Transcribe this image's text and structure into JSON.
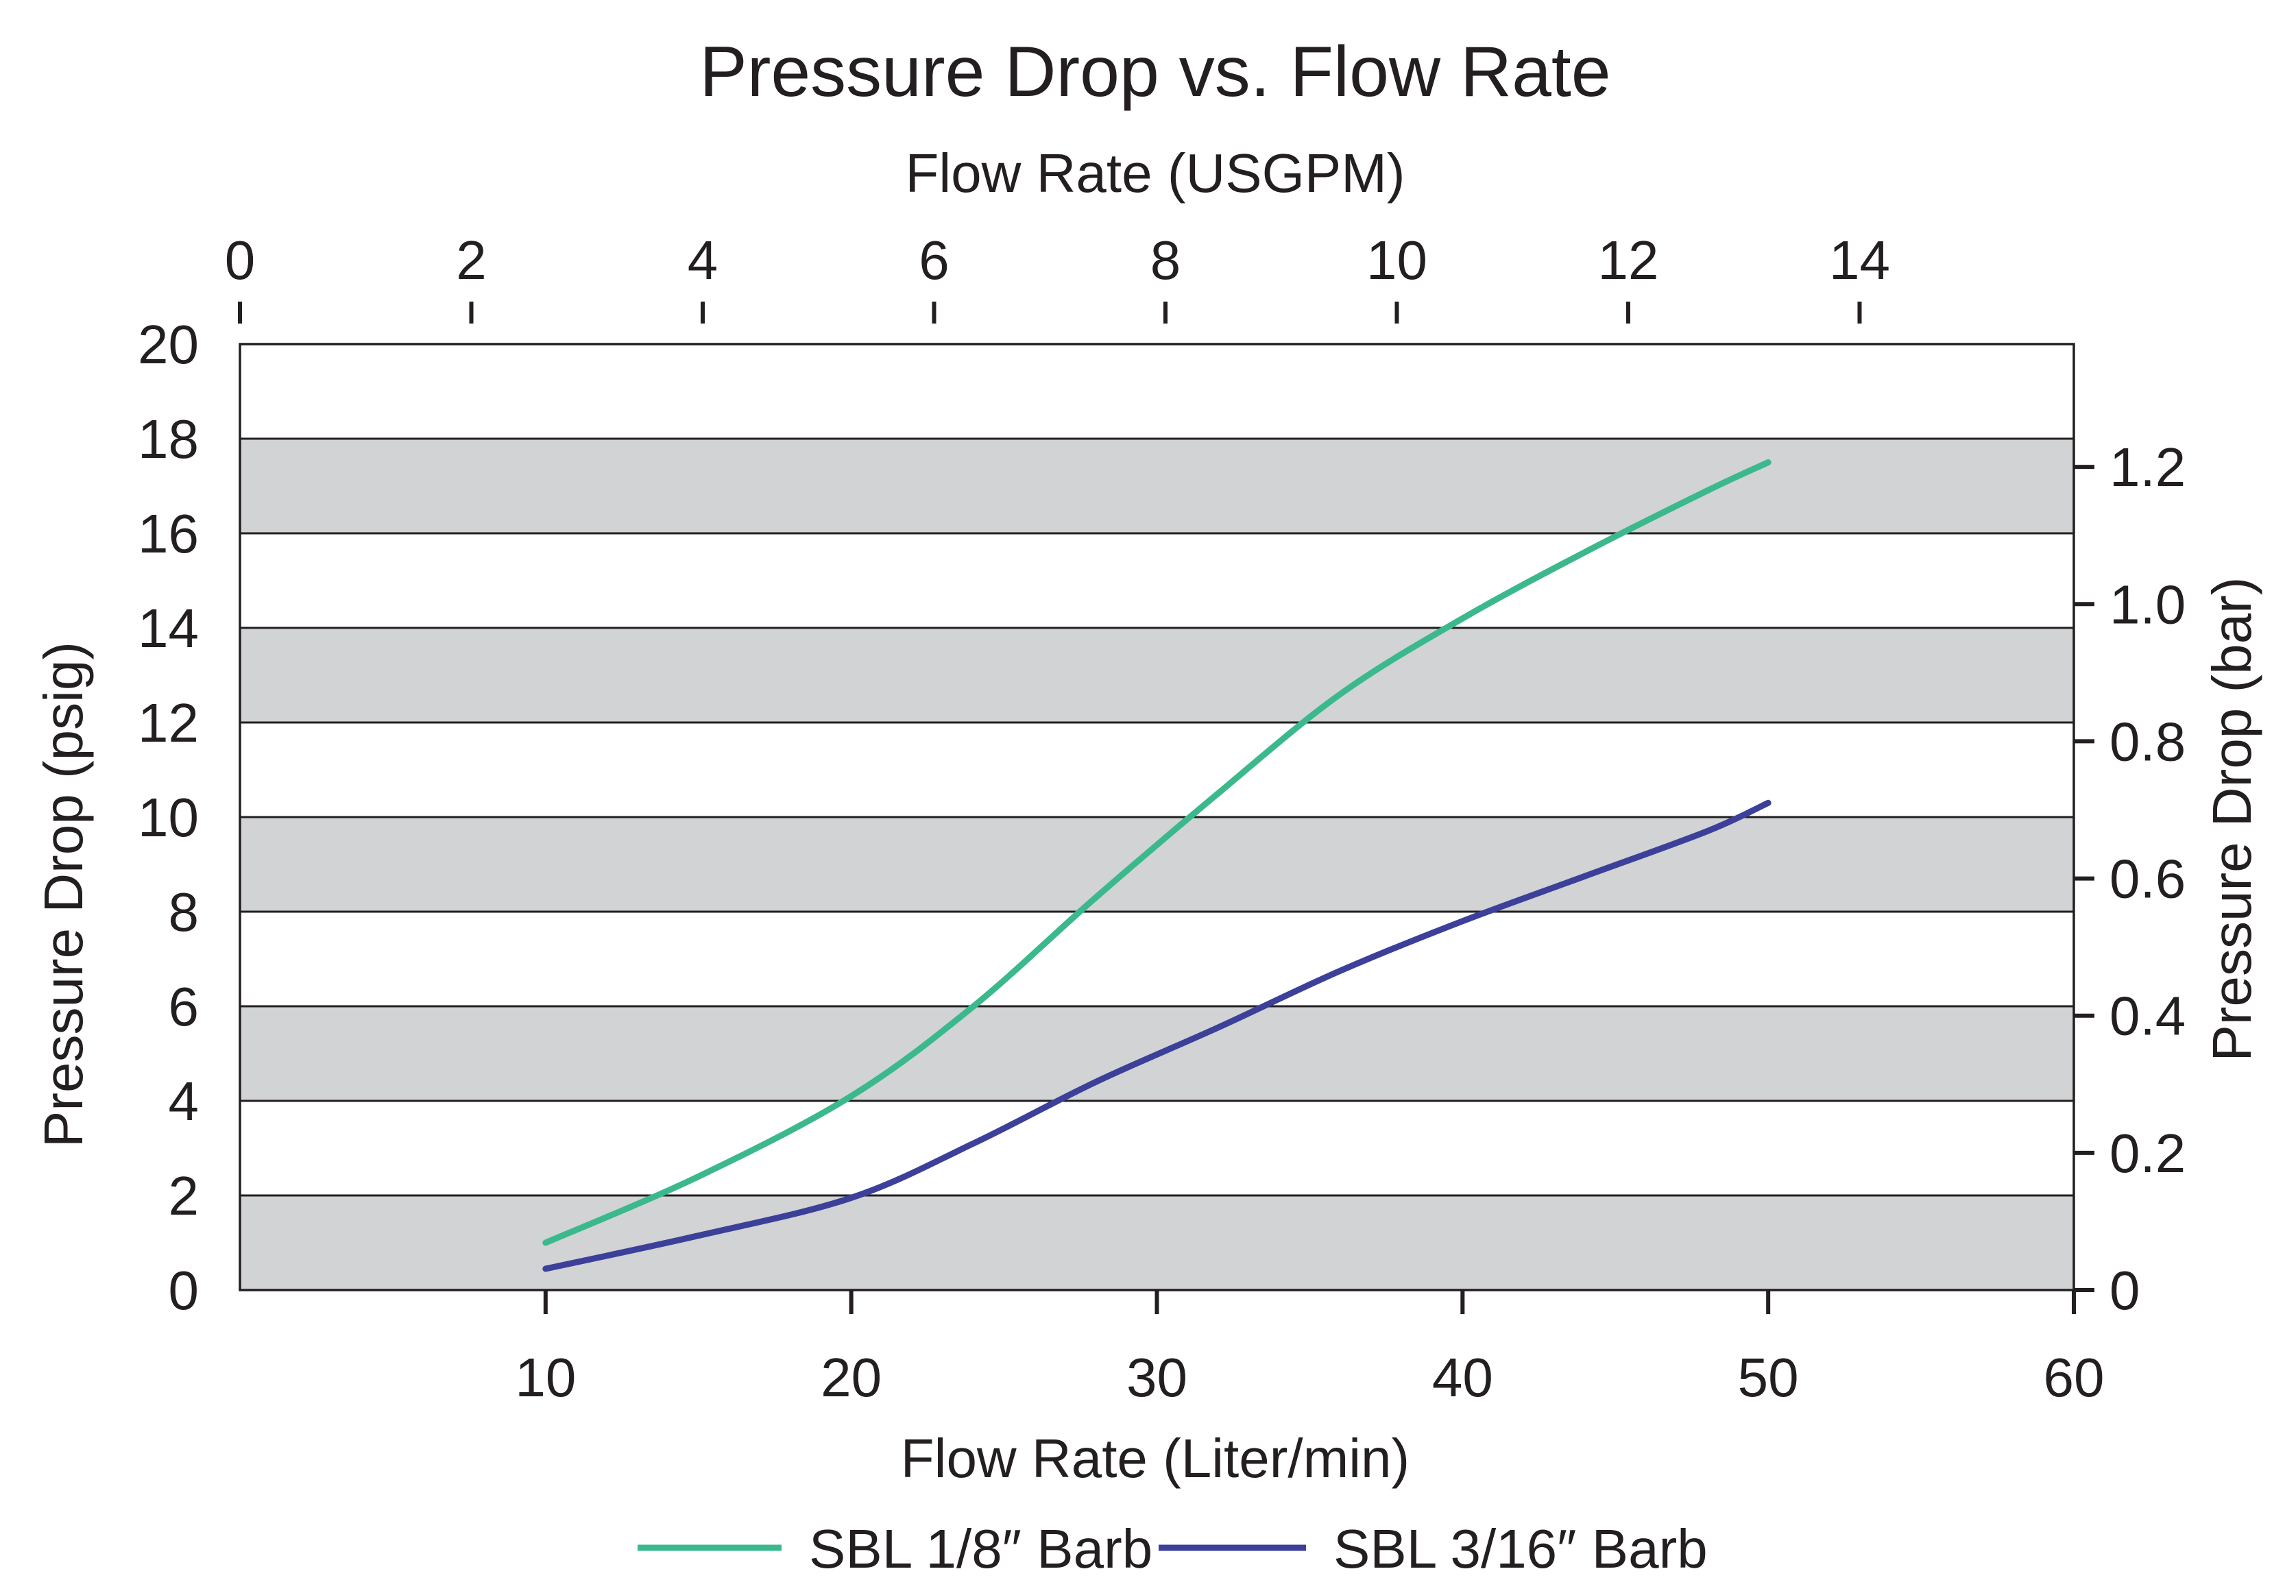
{
  "chart_data": {
    "type": "line",
    "title": "Pressure Drop vs. Flow Rate",
    "xlabel": "Flow Rate (Liter/min)",
    "x2label": "Flow Rate (USGPM)",
    "ylabel": "Pressure Drop (psig)",
    "y2label": "Pressure Drop (bar)",
    "xlim": [
      0,
      60
    ],
    "ylim": [
      0,
      20
    ],
    "x_ticks": [
      "10",
      "20",
      "30",
      "40",
      "50",
      "60"
    ],
    "x_tick_values": [
      10,
      20,
      30,
      40,
      50,
      60
    ],
    "x2_ticks": [
      "0",
      "2",
      "4",
      "6",
      "8",
      "10",
      "12",
      "14"
    ],
    "x2_tick_values": [
      0,
      2,
      4,
      6,
      8,
      10,
      12,
      14
    ],
    "x2_per_x": 0.2642,
    "y_ticks": [
      "0",
      "2",
      "4",
      "6",
      "8",
      "10",
      "12",
      "14",
      "16",
      "18",
      "20"
    ],
    "y_tick_values": [
      0,
      2,
      4,
      6,
      8,
      10,
      12,
      14,
      16,
      18,
      20
    ],
    "y2_ticks": [
      "0",
      "0.2",
      "0.4",
      "0.6",
      "0.8",
      "1.0",
      "1.2"
    ],
    "y2_tick_values": [
      0,
      0.2,
      0.4,
      0.6,
      0.8,
      1.0,
      1.2
    ],
    "y2_per_y": 0.06895,
    "grid": "alternating horizontal bands",
    "legend_position": "bottom-center",
    "band_color": "#d1d3d4",
    "series": [
      {
        "name": "SBL 1/8″ Barb",
        "color": "#3bb98c",
        "x": [
          10,
          15,
          20,
          24,
          28,
          32,
          36,
          40,
          44,
          48,
          50
        ],
        "y": [
          1.0,
          2.4,
          4.1,
          6.0,
          8.3,
          10.5,
          12.6,
          14.2,
          15.6,
          16.9,
          17.5
        ]
      },
      {
        "name": "SBL 3/16″ Barb",
        "color": "#3c4099",
        "x": [
          10,
          15,
          20,
          24,
          28,
          32,
          36,
          40,
          44,
          48,
          50
        ],
        "y": [
          0.45,
          1.15,
          1.95,
          3.1,
          4.4,
          5.55,
          6.75,
          7.8,
          8.75,
          9.7,
          10.3
        ]
      }
    ]
  }
}
